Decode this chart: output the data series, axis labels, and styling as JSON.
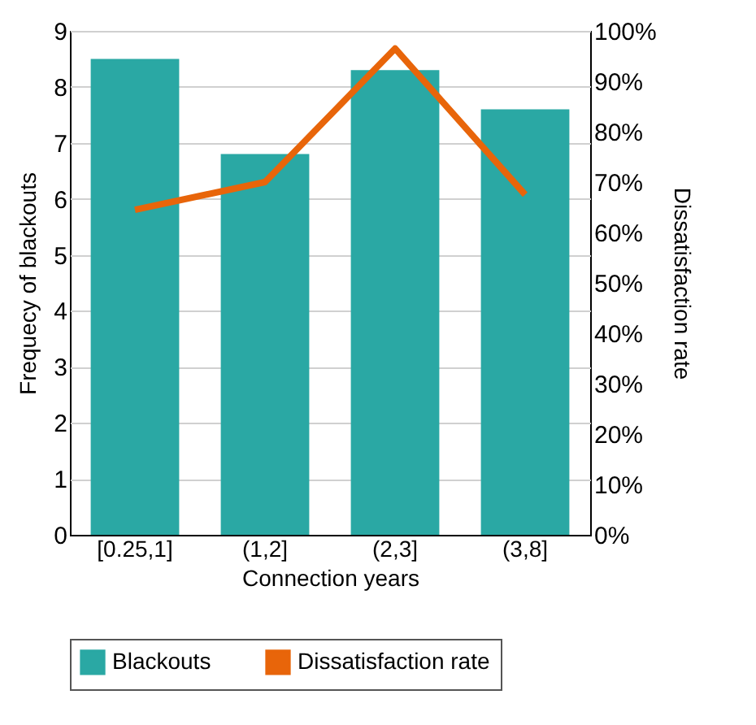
{
  "chart_data": {
    "type": "bar",
    "xlabel": "Connection years",
    "ylabel": "Frequecy of blackouts",
    "y2label": "Dissatisfaction rate",
    "categories": [
      "[0.25,1]",
      "(1,2]",
      "(2,3]",
      "(3,8]"
    ],
    "series": [
      {
        "name": "Blackouts",
        "color": "#2aa8a4",
        "values": [
          8.5,
          6.8,
          8.3,
          7.6
        ]
      },
      {
        "name": "Dissatisfaction rate",
        "type": "line",
        "axis": "y2",
        "color": "#e8650a",
        "values": [
          64.5,
          70,
          96.5,
          67.5
        ]
      }
    ],
    "ylim": [
      0,
      9
    ],
    "yticks": [
      0,
      1,
      2,
      3,
      4,
      5,
      6,
      7,
      8,
      9
    ],
    "y2lim": [
      0,
      100
    ],
    "y2ticks": [
      {
        "value": 0,
        "label": "0%"
      },
      {
        "value": 10,
        "label": "10%"
      },
      {
        "value": 20,
        "label": "20%"
      },
      {
        "value": 30,
        "label": "30%"
      },
      {
        "value": 40,
        "label": "40%"
      },
      {
        "value": 50,
        "label": "50%"
      },
      {
        "value": 60,
        "label": "60%"
      },
      {
        "value": 70,
        "label": "70%"
      },
      {
        "value": 80,
        "label": "80%"
      },
      {
        "value": 90,
        "label": "90%"
      },
      {
        "value": 100,
        "label": "100%"
      }
    ],
    "grid": "y",
    "legend": "bottom",
    "marker": "none",
    "line_style": "solid"
  }
}
